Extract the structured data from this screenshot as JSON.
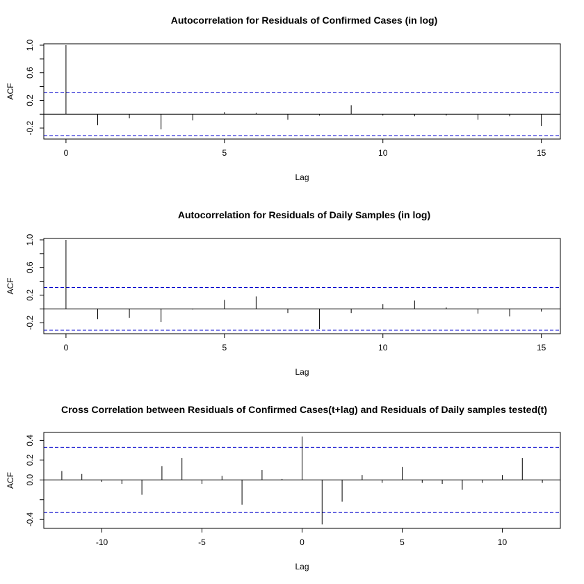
{
  "chart_data": [
    {
      "type": "acf",
      "title": "Autocorrelation for Residuals of Confirmed Cases (in log)",
      "xlabel": "Lag",
      "ylabel": "ACF",
      "xlim": [
        -0.7,
        15.6
      ],
      "ylim": [
        -0.36,
        1.02
      ],
      "x_ticks": [
        0,
        5,
        10,
        15
      ],
      "x_tick_labels": [
        "0",
        "5",
        "10",
        "15"
      ],
      "y_ticks": [
        -0.2,
        0.2,
        0.6,
        1.0
      ],
      "y_tick_labels": [
        "-0.2",
        "0.2",
        "0.6",
        "1.0"
      ],
      "y_minor_ticks": [
        0.0,
        0.4,
        0.8
      ],
      "conf_limit": 0.31,
      "lags": [
        0,
        1,
        2,
        3,
        4,
        5,
        6,
        7,
        8,
        9,
        10,
        11,
        12,
        13,
        14,
        15
      ],
      "values": [
        1.0,
        -0.16,
        -0.06,
        -0.22,
        -0.09,
        0.03,
        0.02,
        -0.08,
        -0.02,
        0.13,
        -0.02,
        -0.03,
        -0.02,
        -0.08,
        -0.03,
        -0.17
      ],
      "line_color": "#000000",
      "conf_color": "#0000cc",
      "grid": false
    },
    {
      "type": "acf",
      "title": "Autocorrelation for Residuals of Daily Samples (in log)",
      "xlabel": "Lag",
      "ylabel": "ACF",
      "xlim": [
        -0.7,
        15.6
      ],
      "ylim": [
        -0.36,
        1.02
      ],
      "x_ticks": [
        0,
        5,
        10,
        15
      ],
      "x_tick_labels": [
        "0",
        "5",
        "10",
        "15"
      ],
      "y_ticks": [
        -0.2,
        0.2,
        0.6,
        1.0
      ],
      "y_tick_labels": [
        "-0.2",
        "0.2",
        "0.6",
        "1.0"
      ],
      "y_minor_ticks": [
        0.0,
        0.4,
        0.8
      ],
      "conf_limit": 0.31,
      "lags": [
        0,
        1,
        2,
        3,
        4,
        5,
        6,
        7,
        8,
        9,
        10,
        11,
        12,
        13,
        14,
        15
      ],
      "values": [
        1.0,
        -0.15,
        -0.13,
        -0.19,
        -0.01,
        0.13,
        0.18,
        -0.06,
        -0.29,
        -0.06,
        0.07,
        0.12,
        0.02,
        -0.07,
        -0.11,
        -0.04
      ],
      "line_color": "#000000",
      "conf_color": "#0000cc",
      "grid": false
    },
    {
      "type": "ccf",
      "title": "Cross Correlation between Residuals of Confirmed Cases(t+lag) and Residuals of Daily samples tested(t)",
      "xlabel": "Lag",
      "ylabel": "ACF",
      "xlim": [
        -12.9,
        12.9
      ],
      "ylim": [
        -0.49,
        0.48
      ],
      "x_ticks": [
        -10,
        -5,
        0,
        5,
        10
      ],
      "x_tick_labels": [
        "-10",
        "-5",
        "0",
        "5",
        "10"
      ],
      "y_ticks": [
        -0.4,
        0.0,
        0.2,
        0.4
      ],
      "y_tick_labels": [
        "-0.4",
        "0.0",
        "0.2",
        "0.4"
      ],
      "y_minor_ticks": [
        -0.2
      ],
      "conf_limit": 0.33,
      "lags": [
        -12,
        -11,
        -10,
        -9,
        -8,
        -7,
        -6,
        -5,
        -4,
        -3,
        -2,
        -1,
        0,
        1,
        2,
        3,
        4,
        5,
        6,
        7,
        8,
        9,
        10,
        11,
        12
      ],
      "values": [
        0.09,
        0.06,
        -0.02,
        -0.04,
        -0.15,
        0.14,
        0.22,
        -0.04,
        0.04,
        -0.25,
        0.1,
        0.01,
        0.44,
        -0.45,
        -0.22,
        0.05,
        -0.03,
        0.13,
        -0.03,
        -0.04,
        -0.1,
        -0.03,
        0.05,
        0.22,
        -0.03
      ],
      "line_color": "#000000",
      "conf_color": "#0000cc",
      "grid": false
    }
  ]
}
